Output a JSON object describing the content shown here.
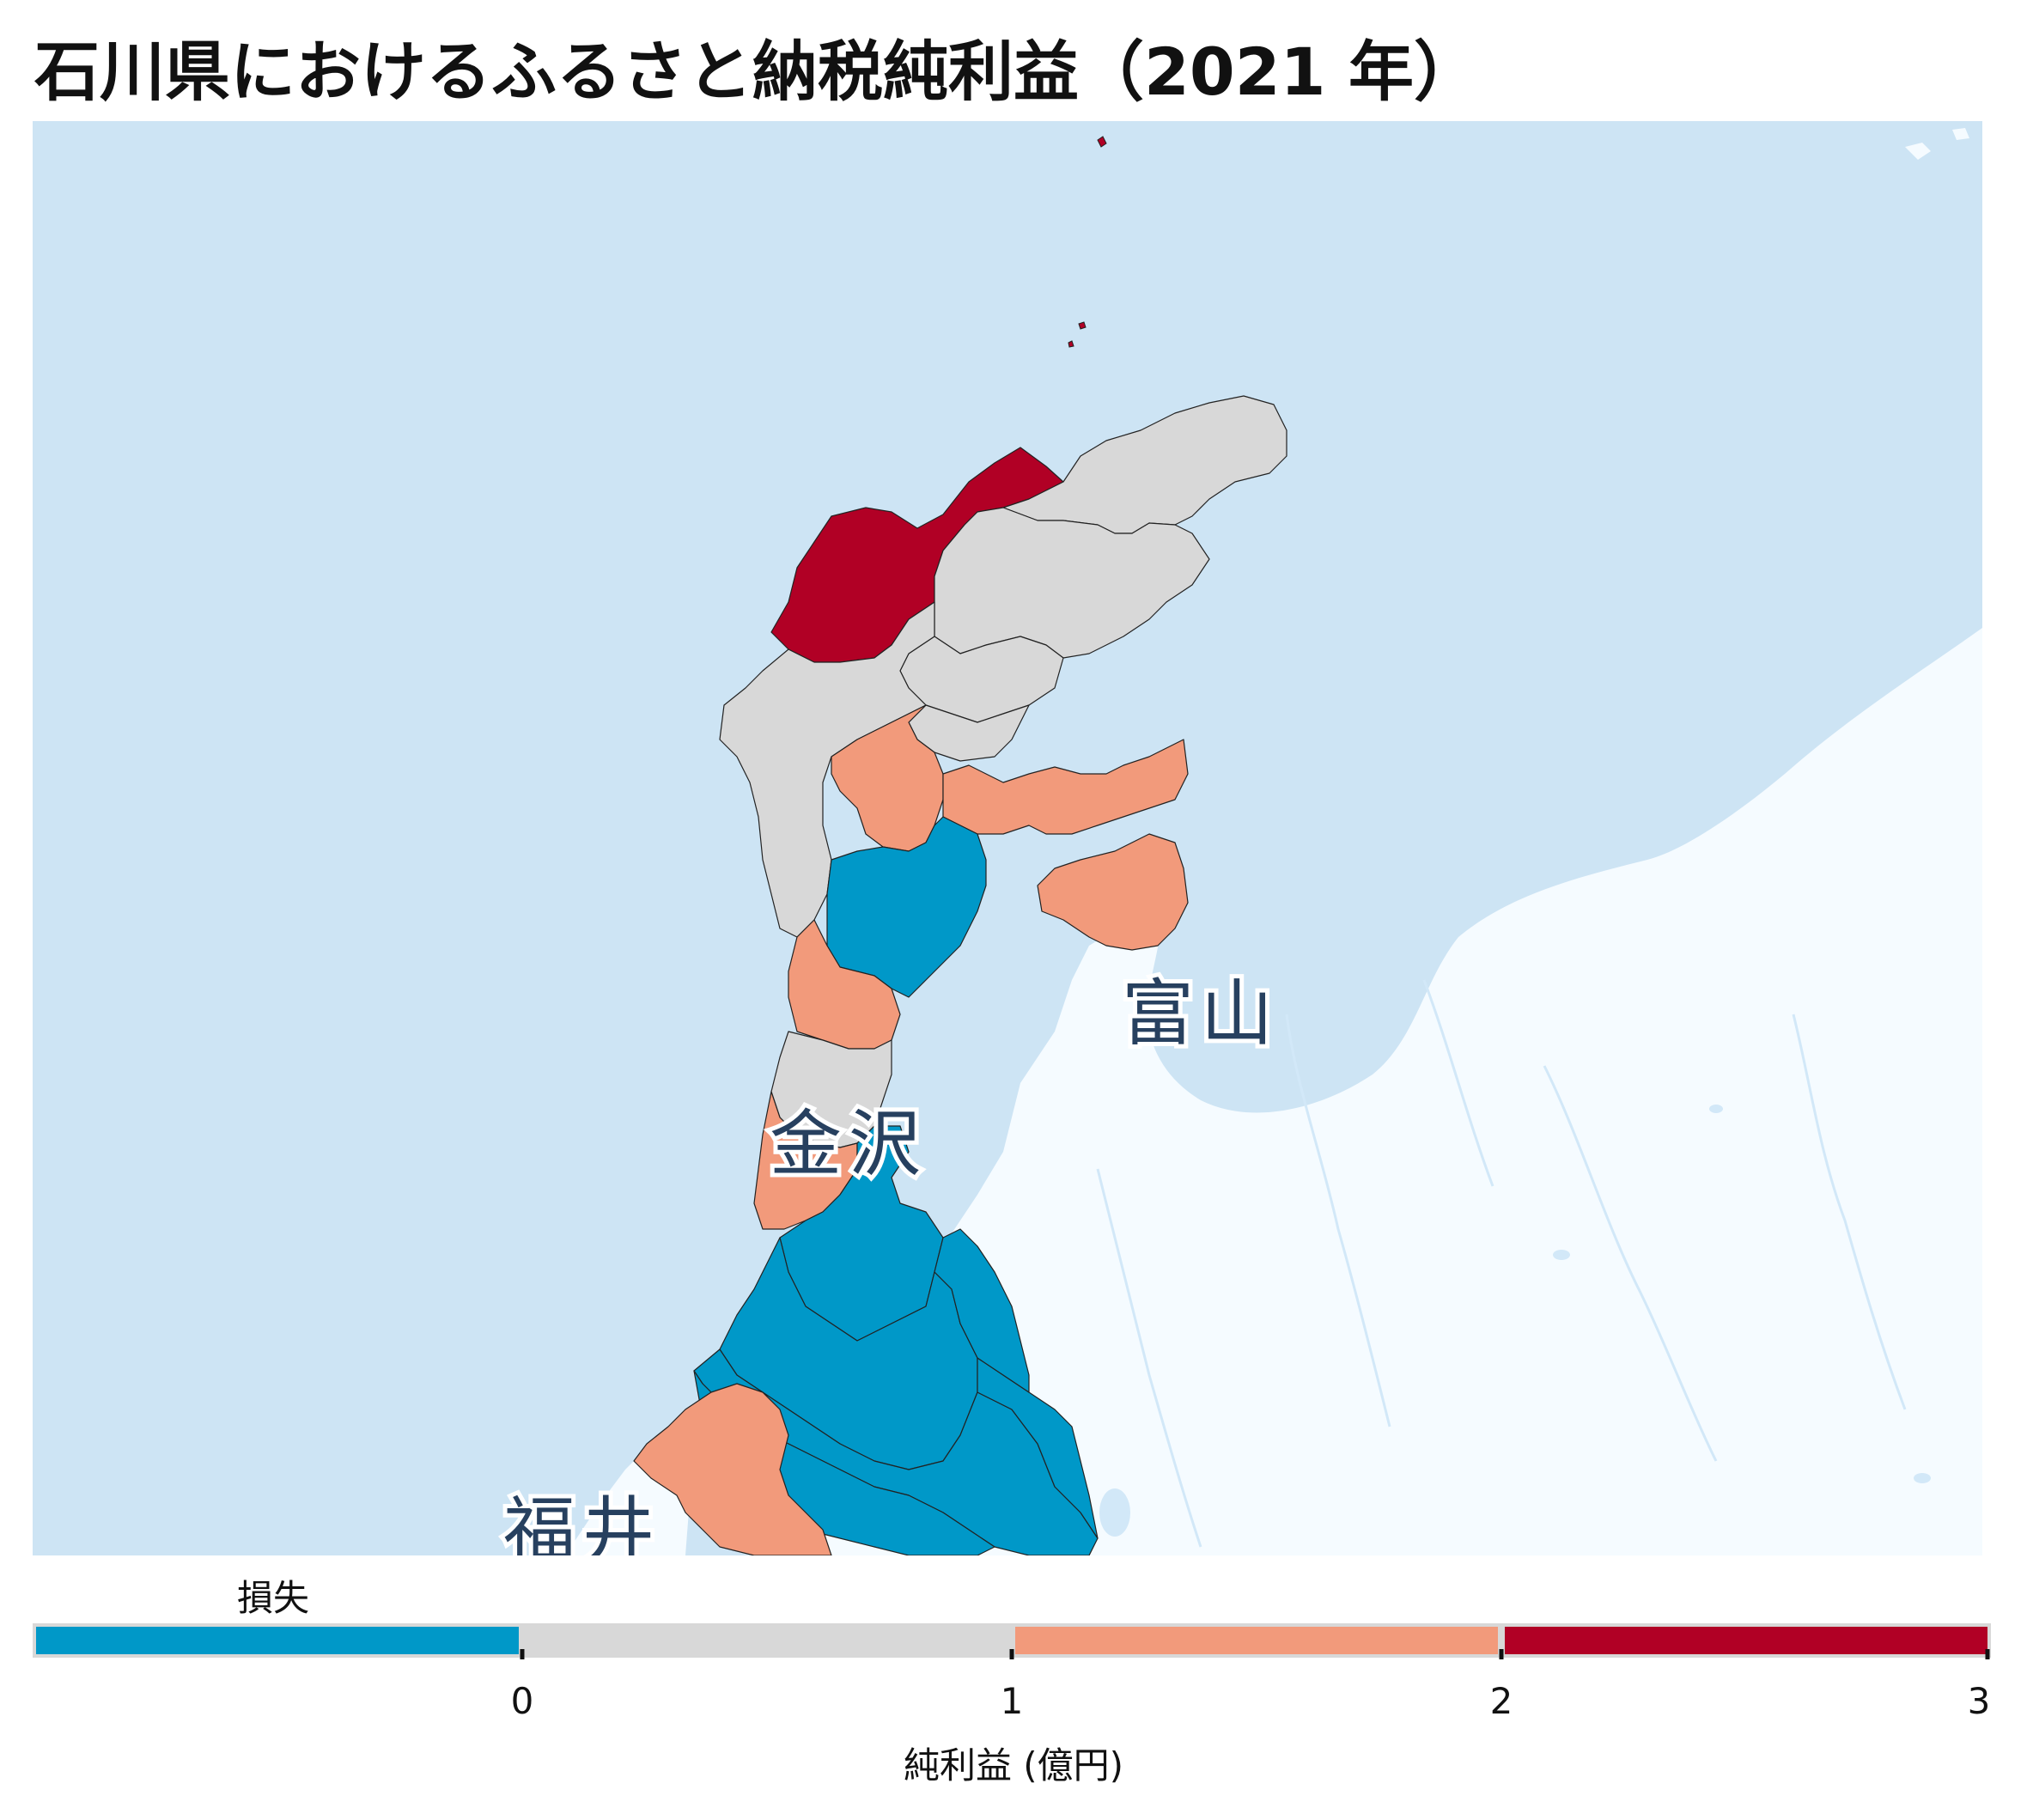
{
  "title": "石川県におけるふるさと納税純利益（2021 年）",
  "map": {
    "colors": {
      "sea": "#cde4f4",
      "land_other": "#f5fbff",
      "lake_river": "#d2e8f8",
      "outline": "#222222"
    },
    "place_labels": [
      "富山",
      "金沢",
      "福井"
    ],
    "municipalities": [
      {
        "class": "2-3"
      },
      {
        "class": "0-1"
      },
      {
        "class": "0-1"
      },
      {
        "class": "0-1"
      },
      {
        "class": "0-1"
      },
      {
        "class": "0-1"
      },
      {
        "class": "1-2"
      },
      {
        "class": "1-2"
      },
      {
        "class": "<0"
      },
      {
        "class": "1-2"
      },
      {
        "class": "0-1"
      },
      {
        "class": "1-2"
      },
      {
        "class": "<0"
      },
      {
        "class": "<0"
      },
      {
        "class": "<0"
      },
      {
        "class": "<0"
      },
      {
        "class": "<0"
      },
      {
        "class": "<0"
      },
      {
        "class": "1-2"
      }
    ]
  },
  "legend": {
    "loss_label": "損失",
    "axis_title": "純利益 (億円)",
    "ticks": [
      "0",
      "1",
      "2",
      "3"
    ],
    "bins": [
      {
        "range": "<0",
        "color": "#0098c8"
      },
      {
        "range": "0-1",
        "color": "#d8d8d8"
      },
      {
        "range": "1-2",
        "color": "#f29a7b"
      },
      {
        "range": "2-3",
        "color": "#b10025"
      }
    ]
  }
}
